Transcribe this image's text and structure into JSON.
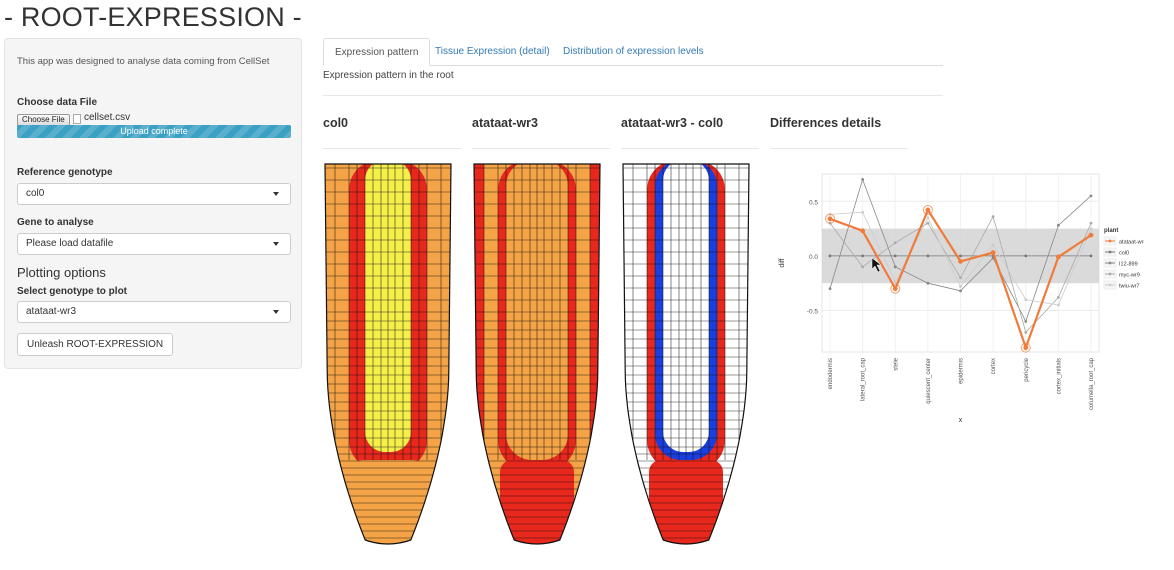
{
  "app": {
    "title": "- ROOT-EXPRESSION -"
  },
  "sidebar": {
    "description": "This app was designed to analyse data coming from CellSet",
    "file": {
      "label": "Choose data File",
      "button": "Choose File",
      "filename": "cellset.csv",
      "progress_text": "Upload complete",
      "progress": 1.0
    },
    "reference": {
      "label": "Reference genotype",
      "value": "col0"
    },
    "gene": {
      "label": "Gene to analyse",
      "value": "Please load datafile"
    },
    "plotting": {
      "heading": "Plotting options",
      "label": "Select genotype to plot",
      "value": "atataat-wr3"
    },
    "run_button": "Unleash ROOT-EXPRESSION"
  },
  "tabs": {
    "items": [
      {
        "label": "Expression pattern"
      },
      {
        "label": "Tissue Expression (detail)"
      },
      {
        "label": "Distribution of expression levels"
      }
    ],
    "active_index": 0,
    "caption": "Expression pattern in the root"
  },
  "panels": [
    {
      "title": "col0"
    },
    {
      "title": "atataat-wr3"
    },
    {
      "title": "atataat-wr3 - col0"
    },
    {
      "title": "Differences details"
    }
  ],
  "root_colors": {
    "red": "#e8281d",
    "orange": "#f4a447",
    "yellow": "#f5ef4a",
    "blue": "#1a3fe0",
    "white": "#ffffff",
    "outline": "#111111"
  },
  "chart_data": {
    "type": "line",
    "title": "",
    "xlabel": "x",
    "ylabel": "diff",
    "categories": [
      "endodermis",
      "lateral_root_cap",
      "stele",
      "quiescent_center",
      "epidermis",
      "cortex",
      "pericycle",
      "cortex_initials",
      "columella_root_cap"
    ],
    "yticks": [
      -0.5,
      0.0,
      0.5
    ],
    "ylim": [
      -0.88,
      0.75
    ],
    "band": [
      -0.25,
      0.25
    ],
    "legend": {
      "title": "plant",
      "placement": "right"
    },
    "highlight_series": "atataat-wr3",
    "series": [
      {
        "name": "atataat-wr3",
        "color": "#f07b3b",
        "values": [
          0.34,
          0.23,
          -0.3,
          0.42,
          -0.05,
          0.03,
          -0.84,
          -0.01,
          0.19
        ]
      },
      {
        "name": "col0",
        "color": "#777777",
        "values": [
          0,
          0,
          0,
          0,
          0,
          0,
          0,
          0,
          0
        ]
      },
      {
        "name": "I12-899",
        "color": "#888888",
        "values": [
          -0.3,
          0.7,
          -0.1,
          -0.25,
          -0.32,
          -0.02,
          -0.6,
          0.28,
          0.55
        ]
      },
      {
        "name": "myc-wr9",
        "color": "#aaaaaa",
        "values": [
          0.3,
          -0.1,
          0.12,
          0.3,
          -0.2,
          0.36,
          -0.7,
          -0.38,
          0.3
        ]
      },
      {
        "name": "twiu-wr7",
        "color": "#cccccc",
        "values": [
          0.38,
          0.4,
          -0.24,
          0.35,
          -0.28,
          0.1,
          -0.4,
          -0.45,
          0.25
        ]
      }
    ]
  }
}
